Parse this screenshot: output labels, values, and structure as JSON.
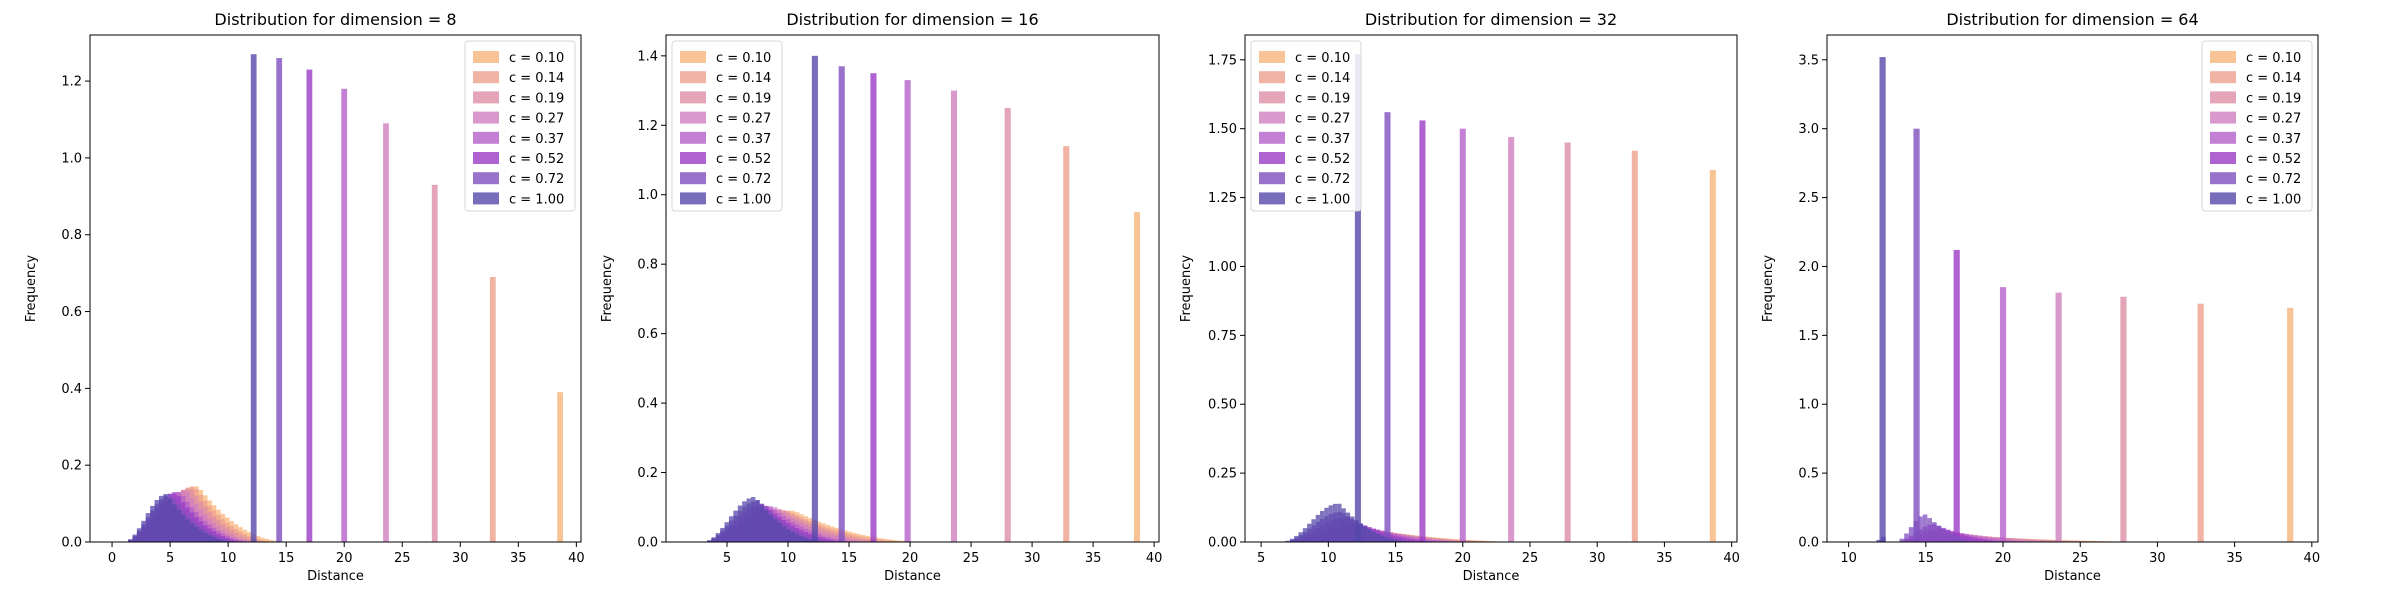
{
  "legend_labels": [
    "c = 0.10",
    "c = 0.14",
    "c = 0.19",
    "c = 0.27",
    "c = 0.37",
    "c = 0.52",
    "c = 0.72",
    "c = 1.00"
  ],
  "colors": [
    "#f8b57a",
    "#eea08c",
    "#dc8ea5",
    "#cf7fc0",
    "#b460cb",
    "#9a3cc5",
    "#7f4fbf",
    "#5548aa"
  ],
  "chart_data": [
    {
      "type": "bar",
      "title": "Distribution for dimension = 8",
      "xlabel": "Distance",
      "ylabel": "Frequency",
      "xlim": [
        -1.9,
        40.4
      ],
      "ylim": [
        0,
        1.32
      ],
      "xticks": [
        0,
        5,
        10,
        15,
        20,
        25,
        30,
        35,
        40
      ],
      "yticks": [
        0.0,
        0.2,
        0.4,
        0.6,
        0.8,
        1.0,
        1.2
      ],
      "legend_position": "top-right",
      "spike_width": 0.5,
      "bump_width": 0.38,
      "series": [
        {
          "name": "c = 0.10",
          "spike": {
            "x": 38.6,
            "height": 0.39
          },
          "bump": {
            "start": 1.0,
            "peak": 7.4,
            "end": 15.5,
            "height": 0.145
          }
        },
        {
          "name": "c = 0.14",
          "spike": {
            "x": 32.8,
            "height": 0.69
          },
          "bump": {
            "start": 1.0,
            "peak": 7.1,
            "end": 14.5,
            "height": 0.145
          }
        },
        {
          "name": "c = 0.19",
          "spike": {
            "x": 27.8,
            "height": 0.93
          },
          "bump": {
            "start": 1.0,
            "peak": 6.8,
            "end": 13.8,
            "height": 0.14
          }
        },
        {
          "name": "c = 0.27",
          "spike": {
            "x": 23.6,
            "height": 1.09
          },
          "bump": {
            "start": 1.0,
            "peak": 6.4,
            "end": 13.0,
            "height": 0.135
          }
        },
        {
          "name": "c = 0.37",
          "spike": {
            "x": 20.0,
            "height": 1.18
          },
          "bump": {
            "start": 1.0,
            "peak": 5.9,
            "end": 12.5,
            "height": 0.13
          }
        },
        {
          "name": "c = 0.52",
          "spike": {
            "x": 17.0,
            "height": 1.23
          },
          "bump": {
            "start": 1.0,
            "peak": 5.5,
            "end": 12.0,
            "height": 0.13
          }
        },
        {
          "name": "c = 0.72",
          "spike": {
            "x": 14.4,
            "height": 1.26
          },
          "bump": {
            "start": 1.0,
            "peak": 5.1,
            "end": 11.5,
            "height": 0.125
          }
        },
        {
          "name": "c = 1.00",
          "spike": {
            "x": 12.2,
            "height": 1.27
          },
          "bump": {
            "start": 1.0,
            "peak": 4.7,
            "end": 11.0,
            "height": 0.125
          }
        }
      ]
    },
    {
      "type": "bar",
      "title": "Distribution for dimension = 16",
      "xlabel": "Distance",
      "ylabel": "Frequency",
      "xlim": [
        0.0,
        40.4
      ],
      "ylim": [
        0,
        1.46
      ],
      "xticks": [
        5,
        10,
        15,
        20,
        25,
        30,
        35,
        40
      ],
      "yticks": [
        0.0,
        0.2,
        0.4,
        0.6,
        0.8,
        1.0,
        1.2,
        1.4
      ],
      "legend_position": "top-left",
      "spike_width": 0.5,
      "bump_width": 0.36,
      "series": [
        {
          "name": "c = 0.10",
          "spike": {
            "x": 38.6,
            "height": 0.95
          },
          "bump": {
            "start": 3.0,
            "peak": 10.5,
            "end": 22.0,
            "height": 0.09
          }
        },
        {
          "name": "c = 0.14",
          "spike": {
            "x": 32.8,
            "height": 1.14
          },
          "bump": {
            "start": 3.0,
            "peak": 10.0,
            "end": 21.0,
            "height": 0.09
          }
        },
        {
          "name": "c = 0.19",
          "spike": {
            "x": 28.0,
            "height": 1.25
          },
          "bump": {
            "start": 3.0,
            "peak": 9.5,
            "end": 19.5,
            "height": 0.095
          }
        },
        {
          "name": "c = 0.27",
          "spike": {
            "x": 23.6,
            "height": 1.3
          },
          "bump": {
            "start": 3.0,
            "peak": 9.0,
            "end": 18.0,
            "height": 0.1
          }
        },
        {
          "name": "c = 0.37",
          "spike": {
            "x": 19.8,
            "height": 1.33
          },
          "bump": {
            "start": 3.0,
            "peak": 8.5,
            "end": 16.5,
            "height": 0.105
          }
        },
        {
          "name": "c = 0.52",
          "spike": {
            "x": 17.0,
            "height": 1.35
          },
          "bump": {
            "start": 3.0,
            "peak": 8.0,
            "end": 15.5,
            "height": 0.11
          }
        },
        {
          "name": "c = 0.72",
          "spike": {
            "x": 14.4,
            "height": 1.37
          },
          "bump": {
            "start": 3.0,
            "peak": 7.6,
            "end": 14.5,
            "height": 0.12
          }
        },
        {
          "name": "c = 1.00",
          "spike": {
            "x": 12.2,
            "height": 1.4
          },
          "bump": {
            "start": 3.0,
            "peak": 7.3,
            "end": 13.5,
            "height": 0.13
          }
        }
      ]
    },
    {
      "type": "bar",
      "title": "Distribution for dimension = 32",
      "xlabel": "Distance",
      "ylabel": "Frequency",
      "xlim": [
        3.8,
        40.4
      ],
      "ylim": [
        0,
        1.84
      ],
      "xticks": [
        5,
        10,
        15,
        20,
        25,
        30,
        35,
        40
      ],
      "yticks": [
        0.0,
        0.25,
        0.5,
        0.75,
        1.0,
        1.25,
        1.5,
        1.75
      ],
      "ytick_labels": [
        "0.00",
        "0.25",
        "0.50",
        "0.75",
        "1.00",
        "1.25",
        "1.50",
        "1.75"
      ],
      "legend_position": "top-left",
      "spike_width": 0.45,
      "bump_width": 0.32,
      "series": [
        {
          "name": "c = 0.10",
          "spike": {
            "x": 38.6,
            "height": 1.35
          },
          "bump": {
            "start": 6.5,
            "peak": 14.0,
            "end": 26.0,
            "height": 0.04
          }
        },
        {
          "name": "c = 0.14",
          "spike": {
            "x": 32.8,
            "height": 1.42
          },
          "bump": {
            "start": 6.5,
            "peak": 13.5,
            "end": 25.0,
            "height": 0.045
          }
        },
        {
          "name": "c = 0.19",
          "spike": {
            "x": 27.8,
            "height": 1.45
          },
          "bump": {
            "start": 6.5,
            "peak": 13.0,
            "end": 24.0,
            "height": 0.05
          }
        },
        {
          "name": "c = 0.27",
          "spike": {
            "x": 23.6,
            "height": 1.47
          },
          "bump": {
            "start": 6.5,
            "peak": 12.5,
            "end": 22.5,
            "height": 0.06
          }
        },
        {
          "name": "c = 0.37",
          "spike": {
            "x": 20.0,
            "height": 1.5
          },
          "bump": {
            "start": 6.5,
            "peak": 12.0,
            "end": 21.0,
            "height": 0.07
          }
        },
        {
          "name": "c = 0.52",
          "spike": {
            "x": 17.0,
            "height": 1.53
          },
          "bump": {
            "start": 6.5,
            "peak": 11.5,
            "end": 19.0,
            "height": 0.09
          }
        },
        {
          "name": "c = 0.72",
          "spike": {
            "x": 14.4,
            "height": 1.56
          },
          "bump": {
            "start": 6.5,
            "peak": 11.0,
            "end": 17.5,
            "height": 0.11
          }
        },
        {
          "name": "c = 1.00",
          "spike": {
            "x": 12.2,
            "height": 1.77
          },
          "bump": {
            "start": 6.5,
            "peak": 10.8,
            "end": 16.5,
            "height": 0.14
          }
        }
      ]
    },
    {
      "type": "bar",
      "title": "Distribution for dimension = 64",
      "xlabel": "Distance",
      "ylabel": "Frequency",
      "xlim": [
        8.6,
        40.4
      ],
      "ylim": [
        0,
        3.68
      ],
      "xticks": [
        10,
        15,
        20,
        25,
        30,
        35,
        40
      ],
      "yticks": [
        0.0,
        0.5,
        1.0,
        1.5,
        2.0,
        2.5,
        3.0,
        3.5
      ],
      "legend_position": "top-right",
      "spike_width": 0.4,
      "bump_width": 0.3,
      "series": [
        {
          "name": "c = 0.10",
          "spike": {
            "x": 38.6,
            "height": 1.7
          },
          "bump": {
            "start": 13.0,
            "peak": 18.0,
            "end": 33.0,
            "height": 0.04
          }
        },
        {
          "name": "c = 0.14",
          "spike": {
            "x": 32.8,
            "height": 1.73
          },
          "bump": {
            "start": 13.0,
            "peak": 17.5,
            "end": 31.0,
            "height": 0.05
          }
        },
        {
          "name": "c = 0.19",
          "spike": {
            "x": 27.8,
            "height": 1.78
          },
          "bump": {
            "start": 13.0,
            "peak": 17.0,
            "end": 29.0,
            "height": 0.06
          }
        },
        {
          "name": "c = 0.27",
          "spike": {
            "x": 23.6,
            "height": 1.81
          },
          "bump": {
            "start": 13.0,
            "peak": 16.5,
            "end": 26.0,
            "height": 0.08
          }
        },
        {
          "name": "c = 0.37",
          "spike": {
            "x": 20.0,
            "height": 1.85
          },
          "bump": {
            "start": 13.0,
            "peak": 16.0,
            "end": 23.0,
            "height": 0.1
          }
        },
        {
          "name": "c = 0.52",
          "spike": {
            "x": 17.0,
            "height": 2.12
          },
          "bump": {
            "start": 13.0,
            "peak": 15.6,
            "end": 21.0,
            "height": 0.13
          }
        },
        {
          "name": "c = 0.72",
          "spike": {
            "x": 14.4,
            "height": 3.0
          },
          "bump": {
            "start": 13.0,
            "peak": 15.0,
            "end": 19.0,
            "height": 0.2
          }
        },
        {
          "name": "c = 1.00",
          "spike": {
            "x": 12.2,
            "height": 3.52
          },
          "bump": {
            "start": 11.8,
            "peak": 12.2,
            "end": 12.6,
            "height": 0.05
          }
        }
      ]
    }
  ]
}
